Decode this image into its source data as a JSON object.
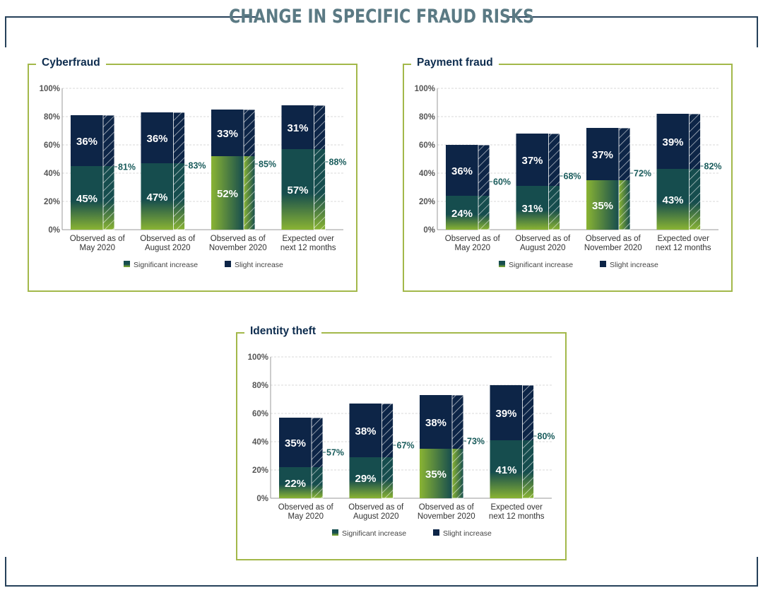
{
  "title": "CHANGE IN SPECIFIC FRAUD RISKS",
  "colors": {
    "slight": "#0d2547",
    "significant_top": "#164d4e",
    "significant_bottom": "#8ab433",
    "total_label": "#1a5c5c",
    "panel_border": "#a3b84a",
    "frame": "#26415a",
    "title": "#5b7a84"
  },
  "chart_data": [
    {
      "type": "bar",
      "stacked": true,
      "title": "Cyberfraud",
      "categories": [
        "Observed as of May 2020",
        "Observed as of August 2020",
        "Observed as of November 2020",
        "Expected over next 12 months"
      ],
      "category_lines": [
        [
          "Observed as of",
          "May 2020"
        ],
        [
          "Observed as of",
          "August 2020"
        ],
        [
          "Observed as of",
          "November 2020"
        ],
        [
          "Expected over",
          "next 12 months"
        ]
      ],
      "series": [
        {
          "name": "Significant increase",
          "values": [
            45,
            47,
            52,
            57
          ]
        },
        {
          "name": "Slight increase",
          "values": [
            36,
            36,
            33,
            31
          ]
        }
      ],
      "totals": [
        81,
        83,
        85,
        88
      ],
      "ylim": [
        0,
        100
      ],
      "yticks": [
        "0%",
        "20%",
        "40%",
        "60%",
        "80%",
        "100%"
      ],
      "grid": true,
      "legend": "bottom"
    },
    {
      "type": "bar",
      "stacked": true,
      "title": "Payment fraud",
      "categories": [
        "Observed as of May 2020",
        "Observed as of August 2020",
        "Observed as of November 2020",
        "Expected over next 12 months"
      ],
      "category_lines": [
        [
          "Observed as of",
          "May 2020"
        ],
        [
          "Observed as of",
          "August 2020"
        ],
        [
          "Observed as of",
          "November 2020"
        ],
        [
          "Expected over",
          "next 12 months"
        ]
      ],
      "series": [
        {
          "name": "Significant increase",
          "values": [
            24,
            31,
            35,
            43
          ]
        },
        {
          "name": "Slight increase",
          "values": [
            36,
            37,
            37,
            39
          ]
        }
      ],
      "totals": [
        60,
        68,
        72,
        82
      ],
      "ylim": [
        0,
        100
      ],
      "yticks": [
        "0%",
        "20%",
        "40%",
        "60%",
        "80%",
        "100%"
      ],
      "grid": true,
      "legend": "bottom"
    },
    {
      "type": "bar",
      "stacked": true,
      "title": "Identity theft",
      "categories": [
        "Observed as of May 2020",
        "Observed as of August 2020",
        "Observed as of November 2020",
        "Expected over next 12 months"
      ],
      "category_lines": [
        [
          "Observed as of",
          "May 2020"
        ],
        [
          "Observed as of",
          "August 2020"
        ],
        [
          "Observed as of",
          "November 2020"
        ],
        [
          "Expected over",
          "next 12 months"
        ]
      ],
      "series": [
        {
          "name": "Significant increase",
          "values": [
            22,
            29,
            35,
            41
          ]
        },
        {
          "name": "Slight increase",
          "values": [
            35,
            38,
            38,
            39
          ]
        }
      ],
      "totals": [
        57,
        67,
        73,
        80
      ],
      "ylim": [
        0,
        100
      ],
      "yticks": [
        "0%",
        "20%",
        "40%",
        "60%",
        "80%",
        "100%"
      ],
      "grid": true,
      "legend": "bottom"
    }
  ]
}
